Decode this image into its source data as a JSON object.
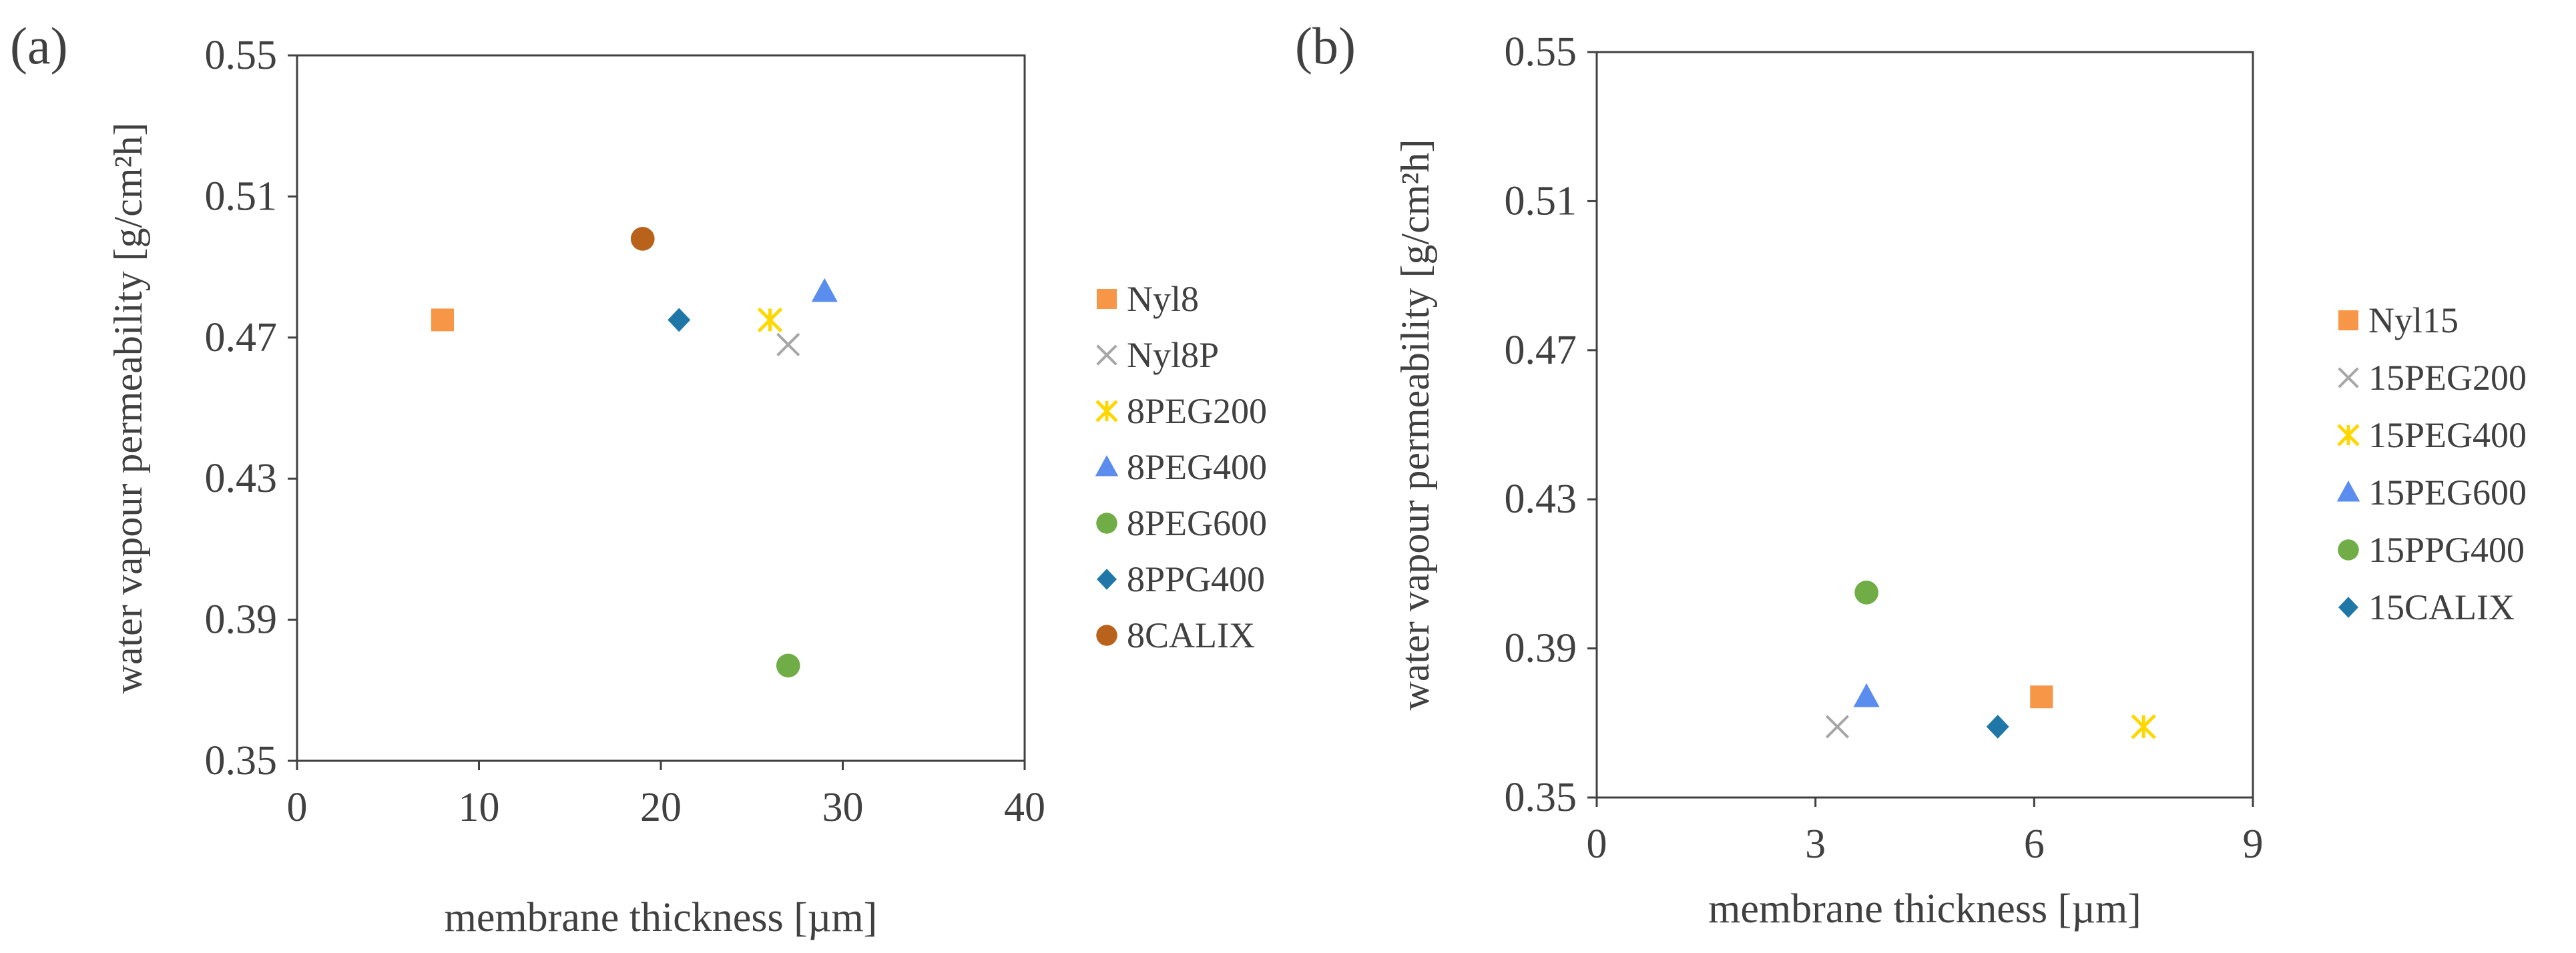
{
  "chart_data": [
    {
      "type": "scatter",
      "panel_label": "(a)",
      "xlabel": "membrane thickness [µm]",
      "ylabel": "water vapour permeability [g/cm²h]",
      "xlim": [
        0,
        40
      ],
      "ylim": [
        0.35,
        0.55
      ],
      "x_ticks": [
        0,
        10,
        20,
        30,
        40
      ],
      "y_ticks": [
        0.35,
        0.39,
        0.43,
        0.47,
        0.51,
        0.55
      ],
      "x_tick_labels": [
        "0",
        "10",
        "20",
        "30",
        "40"
      ],
      "y_tick_labels": [
        "0.35",
        "0.39",
        "0.43",
        "0.47",
        "0.51",
        "0.55"
      ],
      "grid": false,
      "legend_position": "right",
      "series": [
        {
          "name": "Nyl8",
          "marker": "square",
          "color": "#F79646",
          "x": [
            8
          ],
          "y": [
            0.475
          ]
        },
        {
          "name": "Nyl8P",
          "marker": "x",
          "color": "#A6A6A6",
          "x": [
            27
          ],
          "y": [
            0.468
          ]
        },
        {
          "name": "8PEG200",
          "marker": "star",
          "color": "#FFD700",
          "x": [
            26
          ],
          "y": [
            0.475
          ]
        },
        {
          "name": "8PEG400",
          "marker": "triangle",
          "color": "#5B8DEF",
          "x": [
            29
          ],
          "y": [
            0.483
          ]
        },
        {
          "name": "8PEG600",
          "marker": "circle",
          "color": "#70AD47",
          "x": [
            27
          ],
          "y": [
            0.377
          ]
        },
        {
          "name": "8PPG400",
          "marker": "diamond",
          "color": "#1F77A8",
          "x": [
            21
          ],
          "y": [
            0.475
          ]
        },
        {
          "name": "8CALIX",
          "marker": "circle",
          "color": "#B8621B",
          "x": [
            19
          ],
          "y": [
            0.498
          ]
        }
      ]
    },
    {
      "type": "scatter",
      "panel_label": "(b)",
      "xlabel": "membrane thickness [µm]",
      "ylabel": "water vapour permeability [g/cm²h]",
      "xlim": [
        0,
        9
      ],
      "ylim": [
        0.35,
        0.55
      ],
      "x_ticks": [
        0,
        3,
        6,
        9
      ],
      "y_ticks": [
        0.35,
        0.39,
        0.43,
        0.47,
        0.51,
        0.55
      ],
      "x_tick_labels": [
        "0",
        "3",
        "6",
        "9"
      ],
      "y_tick_labels": [
        "0.35",
        "0.39",
        "0.43",
        "0.47",
        "0.51",
        "0.55"
      ],
      "grid": false,
      "legend_position": "right",
      "series": [
        {
          "name": "Nyl15",
          "marker": "square",
          "color": "#F79646",
          "x": [
            6.1
          ],
          "y": [
            0.377
          ]
        },
        {
          "name": "15PEG200",
          "marker": "x",
          "color": "#A6A6A6",
          "x": [
            3.3
          ],
          "y": [
            0.369
          ]
        },
        {
          "name": "15PEG400",
          "marker": "star",
          "color": "#FFD700",
          "x": [
            7.5
          ],
          "y": [
            0.369
          ]
        },
        {
          "name": "15PEG600",
          "marker": "triangle",
          "color": "#5B8DEF",
          "x": [
            3.7
          ],
          "y": [
            0.377
          ]
        },
        {
          "name": "15PPG400",
          "marker": "circle",
          "color": "#70AD47",
          "x": [
            3.7
          ],
          "y": [
            0.405
          ]
        },
        {
          "name": "15CALIX",
          "marker": "diamond",
          "color": "#1F77A8",
          "x": [
            5.5
          ],
          "y": [
            0.369
          ]
        }
      ]
    }
  ]
}
